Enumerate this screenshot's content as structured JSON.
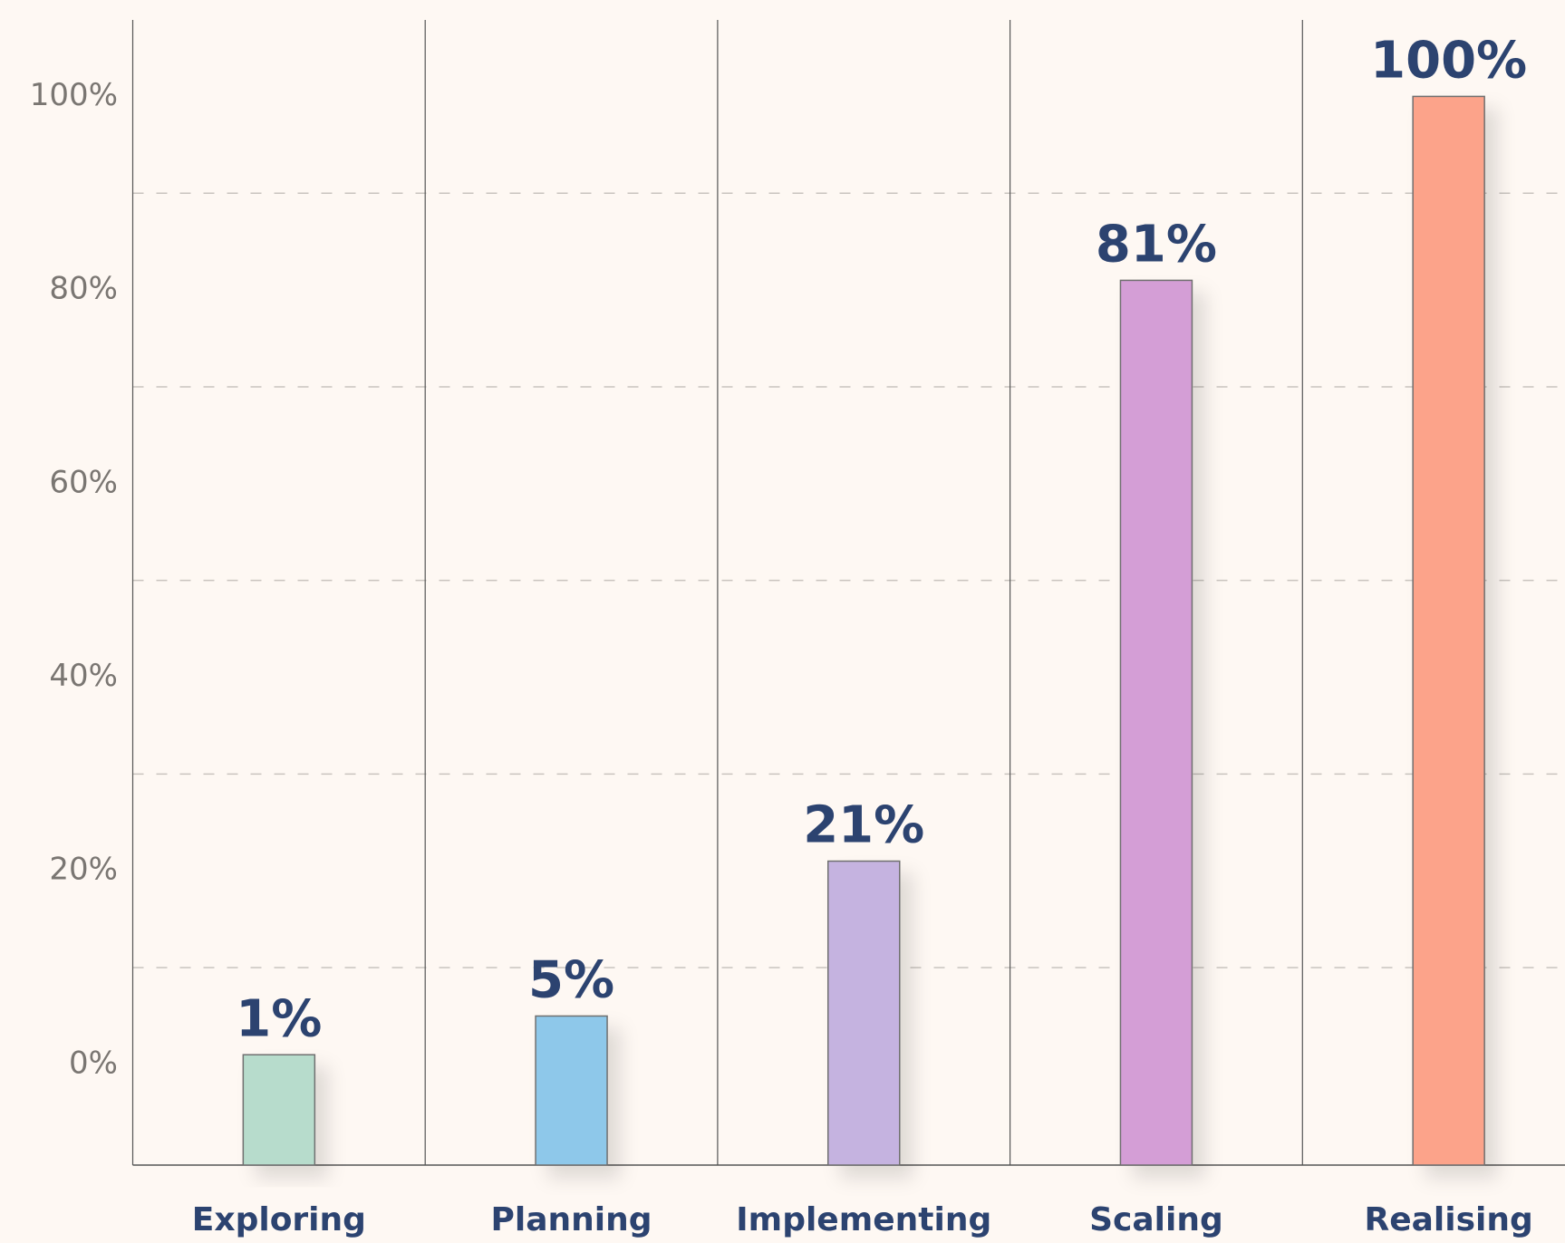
{
  "chart_data": {
    "type": "bar",
    "categories": [
      "Exploring",
      "Planning",
      "Implementing",
      "Scaling",
      "Realising"
    ],
    "values": [
      1,
      5,
      21,
      81,
      100
    ],
    "value_labels": [
      "1%",
      "5%",
      "21%",
      "81%",
      "100%"
    ],
    "colors": [
      "#b7dccc",
      "#8ec8ea",
      "#c5b3e0",
      "#d49ed6",
      "#fca38a"
    ],
    "ylim": [
      -10.4,
      107.9
    ],
    "yticks": [
      {
        "value": 0,
        "label": "0%"
      },
      {
        "value": 20,
        "label": "20%"
      },
      {
        "value": 40,
        "label": "40%"
      },
      {
        "value": 60,
        "label": "60%"
      },
      {
        "value": 80,
        "label": "80%"
      },
      {
        "value": 100,
        "label": "100%"
      }
    ],
    "yminor": [
      10,
      30,
      50,
      70,
      90
    ],
    "grid": true
  }
}
